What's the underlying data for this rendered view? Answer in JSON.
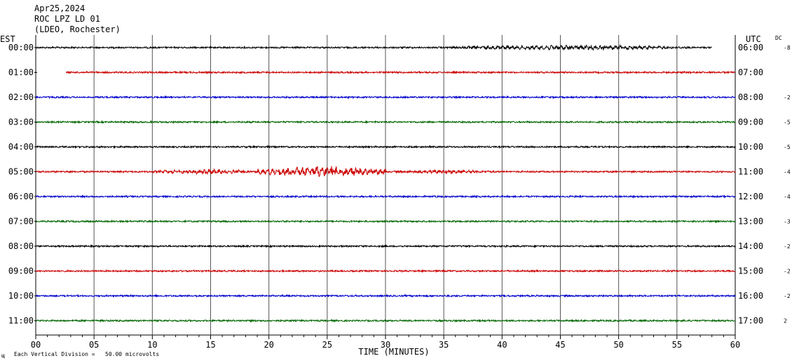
{
  "header": {
    "date": "Apr25,2024",
    "station": "ROC LPZ LD 01",
    "network": "(LDEO, Rochester)"
  },
  "footer": {
    "scale_note": "Each Vertical Division =   50.00 microvolts",
    "corner_mark": "ɰ"
  },
  "chart_data": {
    "type": "line",
    "title": "",
    "xlabel": "TIME (MINUTES)",
    "ylabel_left": "EST",
    "ylabel_right": "UTC",
    "dc_label": "DC",
    "xlim": [
      0,
      60
    ],
    "x_ticks": [
      "00",
      "05",
      "10",
      "15",
      "20",
      "25",
      "30",
      "35",
      "40",
      "45",
      "50",
      "55",
      "60"
    ],
    "grid": true,
    "rows": [
      {
        "est": "00:00",
        "utc": "06:00",
        "dc": "-8",
        "color": "#000000",
        "start_min": 0,
        "end_min": 58,
        "events": [
          {
            "start": 35,
            "end": 56,
            "amp": 2.5
          }
        ]
      },
      {
        "est": "01:00",
        "utc": "07:00",
        "dc": "",
        "color": "#cc0000",
        "start_min": 2.6,
        "end_min": 60,
        "events": []
      },
      {
        "est": "02:00",
        "utc": "08:00",
        "dc": "-2",
        "color": "#0000cc",
        "start_min": 0,
        "end_min": 60,
        "events": []
      },
      {
        "est": "03:00",
        "utc": "09:00",
        "dc": "-5",
        "color": "#006600",
        "start_min": 0,
        "end_min": 60,
        "events": []
      },
      {
        "est": "04:00",
        "utc": "10:00",
        "dc": "-5",
        "color": "#000000",
        "start_min": 0,
        "end_min": 60,
        "events": []
      },
      {
        "est": "05:00",
        "utc": "11:00",
        "dc": "-4",
        "color": "#cc0000",
        "start_min": 0,
        "end_min": 60,
        "events": [
          {
            "start": 10,
            "end": 19,
            "amp": 2.5
          },
          {
            "start": 19,
            "end": 30,
            "amp": 5.5
          },
          {
            "start": 30,
            "end": 40,
            "amp": 2.0
          }
        ]
      },
      {
        "est": "06:00",
        "utc": "12:00",
        "dc": "-4",
        "color": "#0000cc",
        "start_min": 0,
        "end_min": 60,
        "events": []
      },
      {
        "est": "07:00",
        "utc": "13:00",
        "dc": "-3",
        "color": "#006600",
        "start_min": 0,
        "end_min": 60,
        "events": []
      },
      {
        "est": "08:00",
        "utc": "14:00",
        "dc": "-2",
        "color": "#000000",
        "start_min": 0,
        "end_min": 60,
        "events": []
      },
      {
        "est": "09:00",
        "utc": "15:00",
        "dc": "-2",
        "color": "#cc0000",
        "start_min": 0,
        "end_min": 60,
        "events": []
      },
      {
        "est": "10:00",
        "utc": "16:00",
        "dc": "-2",
        "color": "#0000cc",
        "start_min": 0,
        "end_min": 60,
        "events": []
      },
      {
        "est": "11:00",
        "utc": "17:00",
        "dc": "2",
        "color": "#006600",
        "start_min": 0,
        "end_min": 60,
        "events": []
      }
    ]
  }
}
